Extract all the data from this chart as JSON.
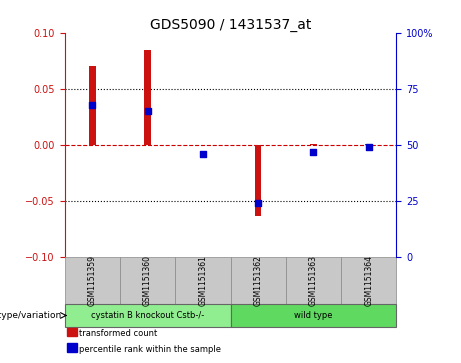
{
  "title": "GDS5090 / 1431537_at",
  "samples": [
    "GSM1151359",
    "GSM1151360",
    "GSM1151361",
    "GSM1151362",
    "GSM1151363",
    "GSM1151364"
  ],
  "transformed_counts": [
    0.07,
    0.085,
    0.0,
    -0.063,
    0.001,
    0.001
  ],
  "percentile_ranks": [
    68,
    65,
    46,
    24,
    47,
    49
  ],
  "ylim_left": [
    -0.1,
    0.1
  ],
  "ylim_right": [
    0,
    100
  ],
  "yticks_left": [
    -0.1,
    -0.05,
    0.0,
    0.05,
    0.1
  ],
  "yticks_right": [
    0,
    25,
    50,
    75,
    100
  ],
  "ytick_labels_right": [
    "0",
    "25",
    "50",
    "75",
    "100%"
  ],
  "bar_color": "#cc1111",
  "dot_color": "#0000cc",
  "zero_line_color": "#cc0000",
  "grid_color": "#000000",
  "groups": [
    {
      "label": "cystatin B knockout Cstb-/-",
      "indices": [
        0,
        1,
        2
      ],
      "color": "#90ee90"
    },
    {
      "label": "wild type",
      "indices": [
        3,
        4,
        5
      ],
      "color": "#5fd95f"
    }
  ],
  "group_label": "genotype/variation",
  "legend_items": [
    {
      "label": "transformed count",
      "color": "#cc1111"
    },
    {
      "label": "percentile rank within the sample",
      "color": "#0000cc"
    }
  ],
  "bar_width": 0.12,
  "dot_size": 18,
  "label_cell_color": "#c8c8c8",
  "fig_width": 4.61,
  "fig_height": 3.63,
  "dpi": 100
}
